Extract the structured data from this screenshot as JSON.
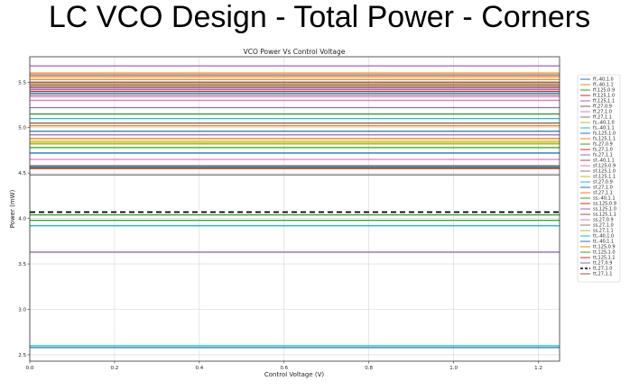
{
  "slide": {
    "title": "LC VCO Design - Total Power - Corners"
  },
  "chart_data": {
    "type": "line",
    "title": "VCO Power Vs Control Voltage",
    "xlabel": "Control Voltage (V)",
    "ylabel": "Power (mW)",
    "xlim": [
      0.0,
      1.25
    ],
    "ylim": [
      2.43,
      5.78
    ],
    "xticks": [
      0.0,
      0.2,
      0.4,
      0.6,
      0.8,
      1.0,
      1.2
    ],
    "xtick_labels": [
      "0.0",
      "0.2",
      "0.4",
      "0.6",
      "0.8",
      "1.0",
      "1.2"
    ],
    "yticks": [
      2.5,
      3.0,
      3.5,
      4.0,
      4.5,
      5.0,
      5.5
    ],
    "ytick_labels": [
      "2.5",
      "3.0",
      "3.5",
      "4.0",
      "4.5",
      "5.0",
      "5.5"
    ],
    "grid": true,
    "legend_position": "outside-right",
    "x": [
      0.0,
      1.25
    ],
    "series": [
      {
        "name": "ff,-40,1.0",
        "color": "#1f77b4",
        "values": [
          5.38,
          5.38
        ]
      },
      {
        "name": "ff,-40,1.1",
        "color": "#ff7f0e",
        "values": [
          5.6,
          5.6
        ]
      },
      {
        "name": "ff,125,0.9",
        "color": "#2ca02c",
        "values": [
          5.15,
          5.15
        ]
      },
      {
        "name": "ff,125,1.0",
        "color": "#d62728",
        "values": [
          5.4,
          5.4
        ]
      },
      {
        "name": "ff,125,1.1",
        "color": "#9467bd",
        "values": [
          5.68,
          5.68
        ]
      },
      {
        "name": "ff,27,0.9",
        "color": "#8c564b",
        "values": [
          5.05,
          5.05
        ]
      },
      {
        "name": "ff,27,1.0",
        "color": "#e377c2",
        "values": [
          5.3,
          5.3
        ]
      },
      {
        "name": "ff,27,1.1",
        "color": "#7f7f7f",
        "values": [
          5.58,
          5.58
        ]
      },
      {
        "name": "fs,-40,1.0",
        "color": "#bcbd22",
        "values": [
          4.85,
          4.85
        ]
      },
      {
        "name": "fs,-40,1.1",
        "color": "#17becf",
        "values": [
          5.1,
          5.1
        ]
      },
      {
        "name": "fs,125,1.0",
        "color": "#1f77b4",
        "values": [
          4.96,
          4.96
        ]
      },
      {
        "name": "fs,125,1.1",
        "color": "#ff7f0e",
        "values": [
          5.02,
          5.02
        ]
      },
      {
        "name": "fs,27,0.9",
        "color": "#2ca02c",
        "values": [
          4.78,
          4.78
        ]
      },
      {
        "name": "fs,27,1.0",
        "color": "#d62728",
        "values": [
          5.46,
          5.46
        ]
      },
      {
        "name": "fs,27,1.1",
        "color": "#9467bd",
        "values": [
          5.22,
          5.22
        ]
      },
      {
        "name": "sf,-40,1.1",
        "color": "#8c564b",
        "values": [
          4.58,
          4.58
        ]
      },
      {
        "name": "sf,125,0.9",
        "color": "#e377c2",
        "values": [
          4.65,
          4.65
        ]
      },
      {
        "name": "sf,125,1.0",
        "color": "#7f7f7f",
        "values": [
          4.48,
          4.48
        ]
      },
      {
        "name": "sf,125,1.1",
        "color": "#bcbd22",
        "values": [
          4.82,
          4.82
        ]
      },
      {
        "name": "sf,27,0.9",
        "color": "#17becf",
        "values": [
          4.57,
          4.57
        ]
      },
      {
        "name": "sf,27,1.0",
        "color": "#1f77b4",
        "values": [
          4.72,
          4.72
        ]
      },
      {
        "name": "sf,27,1.1",
        "color": "#ff7f0e",
        "values": [
          4.88,
          4.88
        ]
      },
      {
        "name": "ss,-40,1.1",
        "color": "#2ca02c",
        "values": [
          3.98,
          3.98
        ]
      },
      {
        "name": "ss,125,0.9",
        "color": "#d62728",
        "values": [
          4.55,
          4.55
        ]
      },
      {
        "name": "ss,125,1.0",
        "color": "#9467bd",
        "values": [
          3.63,
          3.63
        ]
      },
      {
        "name": "ss,125,1.1",
        "color": "#8c564b",
        "values": [
          4.56,
          4.56
        ]
      },
      {
        "name": "ss,27,0.9",
        "color": "#e377c2",
        "values": [
          5.34,
          5.34
        ]
      },
      {
        "name": "ss,27,1.0",
        "color": "#7f7f7f",
        "values": [
          5.36,
          5.36
        ]
      },
      {
        "name": "ss,27,1.1",
        "color": "#bcbd22",
        "values": [
          4.83,
          4.83
        ]
      },
      {
        "name": "tt,-40,1.0",
        "color": "#17becf",
        "values": [
          3.92,
          3.92
        ]
      },
      {
        "name": "tt,-40,1.1",
        "color": "#1f77b4",
        "values": [
          2.58,
          2.58
        ]
      },
      {
        "name": "tt,125,0.9",
        "color": "#ff7f0e",
        "values": [
          5.53,
          5.53
        ]
      },
      {
        "name": "tt,125,1.0",
        "color": "#2ca02c",
        "values": [
          4.04,
          4.04
        ]
      },
      {
        "name": "tt,125,1.1",
        "color": "#d62728",
        "values": [
          5.5,
          5.5
        ]
      },
      {
        "name": "tt,27,0.9",
        "color": "#9467bd",
        "values": [
          4.92,
          4.92
        ]
      },
      {
        "name": "tt,27,1.0",
        "color": "#000000",
        "dashed": true,
        "values": [
          4.07,
          4.07
        ]
      },
      {
        "name": "tt,27,1.1",
        "color": "#8c564b",
        "values": [
          5.44,
          5.44
        ]
      }
    ],
    "extra_lines": [
      {
        "color": "#17becf",
        "values": [
          2.6,
          2.6
        ]
      },
      {
        "color": "#2ca02c",
        "values": [
          5.48,
          5.48
        ]
      },
      {
        "color": "#ff7f0e",
        "values": [
          5.56,
          5.56
        ]
      },
      {
        "color": "#9467bd",
        "values": [
          5.42,
          5.42
        ]
      }
    ]
  }
}
